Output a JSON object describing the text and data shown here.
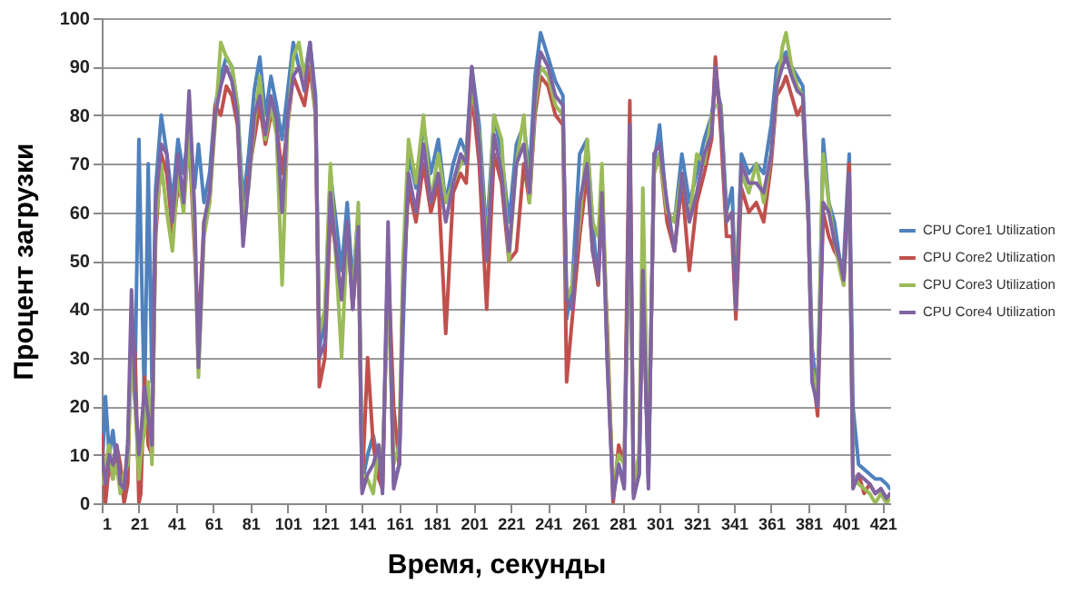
{
  "chart_data": {
    "type": "line",
    "xlabel": "Время, секунды",
    "ylabel": "Процент загрузки",
    "x": [
      1,
      3,
      5,
      7,
      9,
      11,
      13,
      15,
      17,
      19,
      21,
      22,
      24,
      26,
      28,
      30,
      33,
      36,
      39,
      42,
      45,
      48,
      51,
      53,
      56,
      59,
      62,
      65,
      68,
      71,
      74,
      77,
      80,
      83,
      86,
      89,
      92,
      95,
      98,
      101,
      104,
      107,
      110,
      113,
      116,
      118,
      121,
      124,
      127,
      130,
      133,
      136,
      139,
      141,
      144,
      147,
      150,
      152,
      155,
      158,
      161,
      163,
      166,
      170,
      174,
      178,
      182,
      186,
      190,
      194,
      197,
      200,
      204,
      208,
      212,
      216,
      220,
      224,
      228,
      231,
      234,
      237,
      241,
      245,
      249,
      251,
      254,
      258,
      262,
      265,
      268,
      270,
      273,
      276,
      279,
      282,
      285,
      287,
      290,
      292,
      295,
      298,
      301,
      305,
      309,
      313,
      317,
      321,
      325,
      329,
      331,
      334,
      337,
      340,
      342,
      345,
      349,
      353,
      357,
      361,
      364,
      367,
      369,
      372,
      375,
      378,
      381,
      383,
      386,
      389,
      392,
      395,
      398,
      400,
      403,
      405,
      408,
      411,
      414,
      417,
      420,
      423,
      425
    ],
    "xlim": [
      1,
      425
    ],
    "xticks": [
      1,
      21,
      41,
      61,
      81,
      101,
      121,
      141,
      161,
      181,
      201,
      221,
      241,
      261,
      281,
      301,
      321,
      341,
      361,
      381,
      401,
      421
    ],
    "ylim": [
      0,
      100
    ],
    "yticks": [
      0,
      10,
      20,
      30,
      40,
      50,
      60,
      70,
      80,
      90,
      100
    ],
    "grid": "y",
    "legend": "right",
    "marker": "none",
    "line_style": "solid",
    "series": [
      {
        "name": "CPU Core1 Utilization",
        "color": "#4f81bd",
        "values": [
          5,
          22,
          10,
          15,
          8,
          3,
          2,
          12,
          35,
          28,
          75,
          55,
          20,
          70,
          25,
          65,
          80,
          72,
          62,
          75,
          68,
          78,
          65,
          74,
          62,
          68,
          82,
          88,
          92,
          90,
          82,
          62,
          72,
          85,
          92,
          80,
          88,
          82,
          75,
          85,
          95,
          90,
          88,
          95,
          84,
          32,
          38,
          68,
          58,
          48,
          62,
          45,
          60,
          4,
          10,
          14,
          8,
          4,
          52,
          4,
          8,
          35,
          72,
          65,
          78,
          68,
          75,
          62,
          70,
          75,
          72,
          90,
          78,
          55,
          80,
          72,
          58,
          74,
          78,
          68,
          88,
          97,
          92,
          87,
          84,
          38,
          45,
          72,
          75,
          58,
          45,
          68,
          28,
          3,
          8,
          4,
          75,
          2,
          6,
          48,
          4,
          70,
          78,
          60,
          58,
          72,
          62,
          68,
          75,
          80,
          86,
          82,
          60,
          65,
          42,
          72,
          68,
          70,
          68,
          78,
          90,
          92,
          93,
          90,
          88,
          86,
          62,
          32,
          22,
          75,
          62,
          58,
          50,
          50,
          72,
          20,
          8,
          7,
          6,
          5,
          5,
          4,
          3
        ]
      },
      {
        "name": "CPU Core2 Utilization",
        "color": "#c0504d",
        "values": [
          14,
          0,
          8,
          5,
          12,
          8,
          0,
          4,
          38,
          30,
          0,
          2,
          26,
          12,
          10,
          55,
          72,
          68,
          56,
          65,
          62,
          75,
          52,
          35,
          58,
          62,
          82,
          80,
          86,
          84,
          78,
          55,
          68,
          75,
          82,
          74,
          80,
          78,
          68,
          78,
          88,
          85,
          82,
          90,
          80,
          24,
          30,
          60,
          52,
          42,
          58,
          40,
          55,
          3,
          30,
          12,
          5,
          3,
          50,
          20,
          8,
          45,
          65,
          58,
          70,
          60,
          66,
          35,
          64,
          68,
          66,
          85,
          70,
          40,
          72,
          66,
          50,
          52,
          70,
          62,
          80,
          88,
          86,
          80,
          78,
          25,
          38,
          55,
          68,
          52,
          45,
          62,
          35,
          0,
          12,
          8,
          83,
          2,
          10,
          45,
          6,
          68,
          72,
          58,
          52,
          66,
          48,
          62,
          68,
          75,
          92,
          76,
          55,
          55,
          38,
          65,
          60,
          62,
          58,
          70,
          84,
          86,
          88,
          84,
          80,
          82,
          58,
          28,
          18,
          60,
          55,
          52,
          50,
          45,
          70,
          4,
          6,
          2,
          4,
          2,
          3,
          1,
          1
        ]
      },
      {
        "name": "CPU Core3 Utilization",
        "color": "#9bbb59",
        "values": [
          4,
          8,
          12,
          5,
          8,
          2,
          6,
          8,
          30,
          20,
          5,
          10,
          15,
          25,
          8,
          58,
          70,
          60,
          52,
          68,
          60,
          76,
          55,
          26,
          55,
          62,
          78,
          95,
          92,
          90,
          82,
          58,
          65,
          78,
          88,
          75,
          82,
          76,
          45,
          78,
          92,
          95,
          88,
          94,
          80,
          35,
          40,
          70,
          50,
          30,
          55,
          42,
          62,
          6,
          5,
          2,
          12,
          8,
          45,
          8,
          12,
          50,
          75,
          66,
          80,
          62,
          72,
          62,
          66,
          70,
          72,
          86,
          76,
          52,
          80,
          75,
          50,
          70,
          80,
          62,
          82,
          90,
          88,
          82,
          80,
          42,
          45,
          58,
          75,
          58,
          55,
          70,
          32,
          3,
          10,
          8,
          60,
          4,
          10,
          65,
          8,
          68,
          72,
          60,
          58,
          68,
          58,
          72,
          70,
          80,
          82,
          82,
          58,
          60,
          45,
          68,
          64,
          70,
          62,
          72,
          85,
          94,
          97,
          90,
          86,
          84,
          58,
          28,
          22,
          72,
          62,
          54,
          48,
          45,
          65,
          6,
          4,
          3,
          2,
          0,
          2,
          0,
          1
        ]
      },
      {
        "name": "CPU Core4 Utilization",
        "color": "#8064a2",
        "values": [
          10,
          4,
          10,
          8,
          12,
          4,
          3,
          12,
          44,
          22,
          10,
          14,
          24,
          18,
          12,
          62,
          74,
          72,
          58,
          72,
          62,
          85,
          60,
          28,
          58,
          64,
          80,
          86,
          90,
          87,
          80,
          53,
          66,
          80,
          84,
          76,
          84,
          79,
          60,
          80,
          88,
          90,
          85,
          95,
          82,
          30,
          33,
          64,
          52,
          42,
          58,
          40,
          57,
          2,
          6,
          8,
          12,
          2,
          58,
          3,
          8,
          42,
          68,
          60,
          74,
          62,
          68,
          58,
          66,
          72,
          70,
          90,
          74,
          50,
          76,
          68,
          52,
          70,
          74,
          64,
          84,
          93,
          90,
          84,
          82,
          42,
          40,
          62,
          70,
          52,
          46,
          64,
          28,
          1,
          8,
          3,
          78,
          1,
          6,
          48,
          3,
          72,
          74,
          62,
          52,
          68,
          58,
          64,
          72,
          76,
          90,
          80,
          58,
          60,
          40,
          70,
          66,
          66,
          64,
          72,
          86,
          90,
          92,
          88,
          85,
          84,
          58,
          25,
          20,
          62,
          60,
          54,
          50,
          46,
          68,
          3,
          6,
          5,
          4,
          2,
          3,
          1,
          2
        ]
      }
    ]
  }
}
